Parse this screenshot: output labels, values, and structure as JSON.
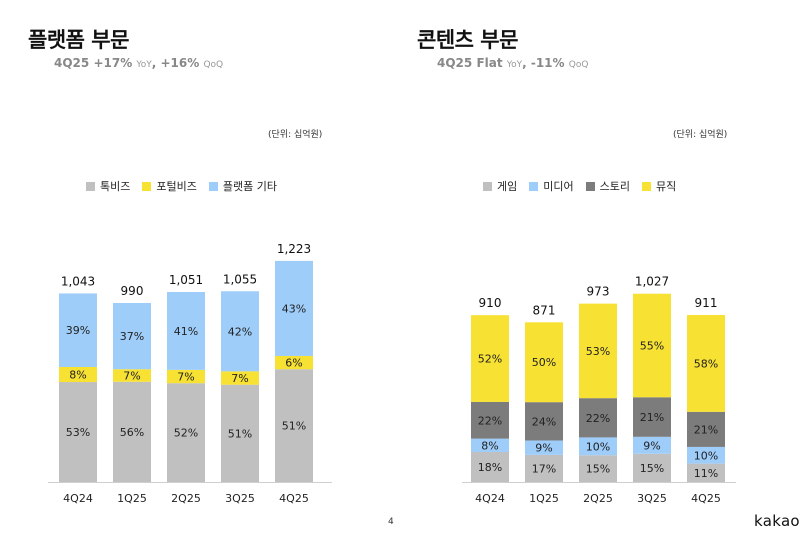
{
  "page_number": "4",
  "logo_text": "kakao",
  "colors": {
    "gray": "#c0c0c0",
    "yellow": "#f7e132",
    "blue": "#9ecdfa",
    "dark_gray": "#7c7c7c"
  },
  "platform": {
    "title": "플랫폼 부문",
    "sub_quarter": "4Q25",
    "sub_yoy_value": "+17%",
    "sub_yoy_label": "YoY",
    "sub_qoq_value": "+16%",
    "sub_qoq_label": "QoQ",
    "unit": "(단위: 십억원)",
    "legend": [
      {
        "label": "톡비즈",
        "color": "#c0c0c0",
        "icon": "square-swatch"
      },
      {
        "label": "포털비즈",
        "color": "#f7e132",
        "icon": "square-swatch"
      },
      {
        "label": "플랫폼 기타",
        "color": "#9ecdfa",
        "icon": "square-swatch"
      }
    ]
  },
  "content": {
    "title": "콘텐츠 부문",
    "sub_quarter": "4Q25",
    "sub_yoy_value": "Flat",
    "sub_yoy_label": "YoY",
    "sub_qoq_value": "-11%",
    "sub_qoq_label": "QoQ",
    "unit": "(단위: 십억원)",
    "legend": [
      {
        "label": "게임",
        "color": "#c0c0c0",
        "icon": "square-swatch"
      },
      {
        "label": "미디어",
        "color": "#9ecdfa",
        "icon": "square-swatch"
      },
      {
        "label": "스토리",
        "color": "#7c7c7c",
        "icon": "square-swatch"
      },
      {
        "label": "뮤직",
        "color": "#f7e132",
        "icon": "square-swatch"
      }
    ]
  },
  "chart_data": [
    {
      "type": "bar",
      "stacked": true,
      "title": "플랫폼 부문",
      "unit": "십억원",
      "categories": [
        "4Q24",
        "1Q25",
        "2Q25",
        "3Q25",
        "4Q25"
      ],
      "totals": [
        1043,
        990,
        1051,
        1055,
        1223
      ],
      "total_labels": [
        "1,043",
        "990",
        "1,051",
        "1,055",
        "1,223"
      ],
      "ylim": [
        0,
        1250
      ],
      "grid": false,
      "legend_position": "top-center",
      "series": [
        {
          "name": "톡비즈",
          "color": "#c0c0c0",
          "share_pct": [
            53,
            56,
            52,
            51,
            51
          ],
          "labels": [
            "53%",
            "56%",
            "52%",
            "51%",
            "51%"
          ]
        },
        {
          "name": "포털비즈",
          "color": "#f7e132",
          "share_pct": [
            8,
            7,
            7,
            7,
            6
          ],
          "labels": [
            "8%",
            "7%",
            "7%",
            "7%",
            "6%"
          ]
        },
        {
          "name": "플랫폼 기타",
          "color": "#9ecdfa",
          "share_pct": [
            39,
            37,
            41,
            42,
            43
          ],
          "labels": [
            "39%",
            "37%",
            "41%",
            "42%",
            "43%"
          ]
        }
      ]
    },
    {
      "type": "bar",
      "stacked": true,
      "title": "콘텐츠 부문",
      "unit": "십억원",
      "categories": [
        "4Q24",
        "1Q25",
        "2Q25",
        "3Q25",
        "4Q25"
      ],
      "totals": [
        910,
        871,
        973,
        1027,
        911
      ],
      "total_labels": [
        "910",
        "871",
        "973",
        "1,027",
        "911"
      ],
      "ylim": [
        0,
        1080
      ],
      "grid": false,
      "legend_position": "top-center",
      "series": [
        {
          "name": "게임",
          "color": "#c0c0c0",
          "share_pct": [
            18,
            17,
            15,
            15,
            11
          ],
          "labels": [
            "18%",
            "17%",
            "15%",
            "15%",
            "11%"
          ]
        },
        {
          "name": "미디어",
          "color": "#9ecdfa",
          "share_pct": [
            8,
            9,
            10,
            9,
            10
          ],
          "labels": [
            "8%",
            "9%",
            "10%",
            "9%",
            "10%"
          ]
        },
        {
          "name": "스토리",
          "color": "#7c7c7c",
          "share_pct": [
            22,
            24,
            22,
            21,
            21
          ],
          "labels": [
            "22%",
            "24%",
            "22%",
            "21%",
            "21%"
          ]
        },
        {
          "name": "뮤직",
          "color": "#f7e132",
          "share_pct": [
            52,
            50,
            53,
            55,
            58
          ],
          "labels": [
            "52%",
            "50%",
            "53%",
            "55%",
            "58%"
          ]
        }
      ]
    }
  ]
}
